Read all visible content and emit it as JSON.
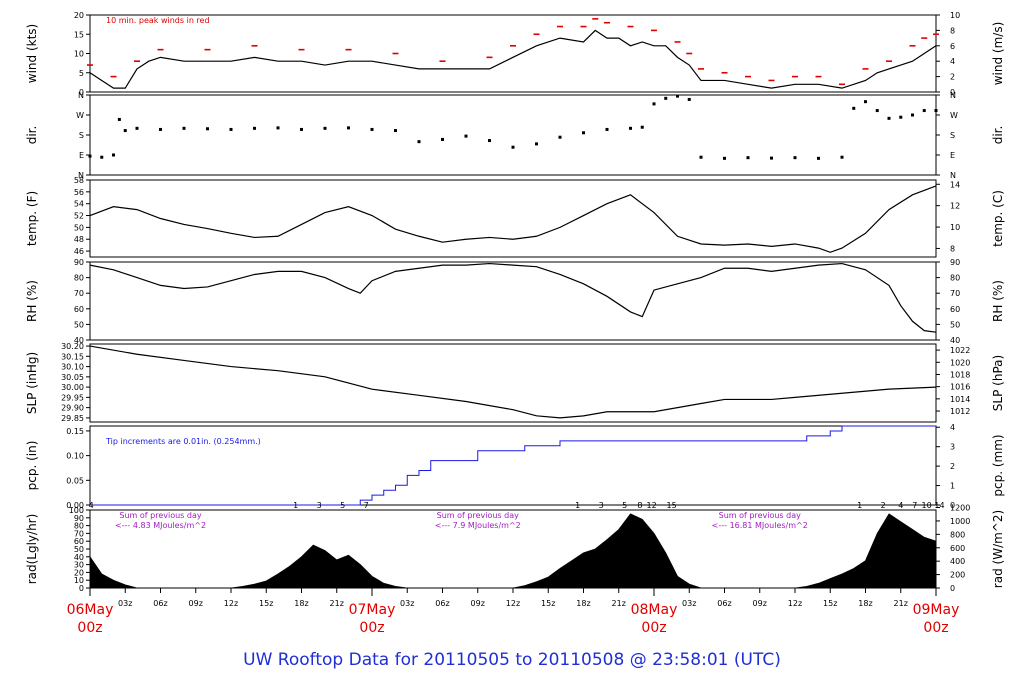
{
  "footer": {
    "title": "UW Rooftop Data for 20110505  to  20110508 @ 23:58:01  (UTC)"
  },
  "time_axis": {
    "day_labels": [
      {
        "day": "06May",
        "hour": "00z",
        "h": 0
      },
      {
        "day": "07May",
        "hour": "00z",
        "h": 24
      },
      {
        "day": "08May",
        "hour": "00z",
        "h": 48
      },
      {
        "day": "09May",
        "hour": "00z",
        "h": 72
      }
    ],
    "hour_ticks": [
      {
        "h": 3,
        "label": "03z"
      },
      {
        "h": 6,
        "label": "06z"
      },
      {
        "h": 9,
        "label": "09z"
      },
      {
        "h": 12,
        "label": "12z"
      },
      {
        "h": 15,
        "label": "15z"
      },
      {
        "h": 18,
        "label": "18z"
      },
      {
        "h": 21,
        "label": "21z"
      },
      {
        "h": 27,
        "label": "03z"
      },
      {
        "h": 30,
        "label": "06z"
      },
      {
        "h": 33,
        "label": "09z"
      },
      {
        "h": 36,
        "label": "12z"
      },
      {
        "h": 39,
        "label": "15z"
      },
      {
        "h": 42,
        "label": "18z"
      },
      {
        "h": 45,
        "label": "21z"
      },
      {
        "h": 51,
        "label": "03z"
      },
      {
        "h": 54,
        "label": "06z"
      },
      {
        "h": 57,
        "label": "09z"
      },
      {
        "h": 60,
        "label": "12z"
      },
      {
        "h": 63,
        "label": "15z"
      },
      {
        "h": 66,
        "label": "18z"
      },
      {
        "h": 69,
        "label": "21z"
      }
    ],
    "colors": {
      "day": "#e00000",
      "tick": "#000000"
    }
  },
  "chart_data": [
    {
      "id": "wind",
      "type": "line",
      "ylabel_left": "wind (kts)",
      "ylabel_right": "wind (m/s)",
      "ylim": [
        0,
        20
      ],
      "yticks_left": [
        0,
        5,
        10,
        15,
        20
      ],
      "ylim_right": [
        0,
        10
      ],
      "yticks_right": [
        0,
        2,
        4,
        6,
        8,
        10
      ],
      "annotation": "10 min. peak winds in red",
      "series": [
        {
          "color": "#000000",
          "x": [
            0,
            1,
            2,
            3,
            4,
            5,
            6,
            8,
            10,
            12,
            14,
            16,
            18,
            20,
            22,
            24,
            26,
            28,
            30,
            32,
            34,
            36,
            38,
            40,
            42,
            43,
            44,
            45,
            46,
            47,
            48,
            49,
            50,
            51,
            52,
            53,
            54,
            56,
            58,
            60,
            62,
            64,
            66,
            67,
            68,
            69,
            70,
            71,
            72
          ],
          "y": [
            5,
            3,
            1,
            1,
            6,
            8,
            9,
            8,
            8,
            8,
            9,
            8,
            8,
            7,
            8,
            8,
            7,
            6,
            6,
            6,
            6,
            9,
            12,
            14,
            13,
            16,
            14,
            14,
            12,
            13,
            12,
            12,
            9,
            7,
            3,
            3,
            3,
            2,
            1,
            2,
            2,
            1,
            3,
            5,
            6,
            7,
            8,
            10,
            12
          ]
        },
        {
          "color": "#e00000",
          "x": [
            0,
            2,
            4,
            6,
            10,
            14,
            18,
            22,
            26,
            30,
            34,
            36,
            38,
            40,
            42,
            43,
            44,
            46,
            48,
            50,
            51,
            52,
            54,
            56,
            58,
            60,
            62,
            64,
            66,
            68,
            70,
            71,
            72
          ],
          "y": [
            7,
            4,
            8,
            11,
            11,
            12,
            11,
            11,
            10,
            8,
            9,
            12,
            15,
            17,
            17,
            19,
            18,
            17,
            16,
            13,
            10,
            6,
            5,
            4,
            3,
            4,
            4,
            2,
            6,
            8,
            12,
            14,
            15
          ]
        }
      ]
    },
    {
      "id": "dir",
      "type": "scatter",
      "ylabel_left": "dir.",
      "ylabel_right": "dir.",
      "ylim": [
        0,
        360
      ],
      "ytick_labels": [
        "N",
        "E",
        "S",
        "W",
        "N"
      ],
      "ytick_values": [
        0,
        90,
        180,
        270,
        360
      ],
      "series": [
        {
          "color": "#000000",
          "x": [
            0,
            1,
            2,
            2.5,
            3,
            4,
            6,
            8,
            10,
            12,
            14,
            16,
            18,
            20,
            22,
            24,
            26,
            28,
            30,
            32,
            34,
            36,
            38,
            40,
            42,
            44,
            46,
            47,
            48,
            49,
            50,
            51,
            52,
            54,
            56,
            58,
            60,
            62,
            64,
            65,
            66,
            67,
            68,
            69,
            70,
            71,
            72
          ],
          "y": [
            85,
            80,
            90,
            250,
            200,
            210,
            205,
            210,
            208,
            205,
            210,
            212,
            205,
            210,
            212,
            205,
            200,
            150,
            160,
            175,
            155,
            125,
            140,
            170,
            190,
            205,
            210,
            215,
            320,
            345,
            355,
            340,
            80,
            75,
            78,
            76,
            78,
            75,
            80,
            300,
            330,
            290,
            255,
            260,
            270,
            290,
            290
          ]
        }
      ]
    },
    {
      "id": "temp",
      "type": "line",
      "ylabel_left": "temp. (F)",
      "ylabel_right": "temp. (C)",
      "ylim": [
        45,
        58
      ],
      "yticks_left": [
        46,
        48,
        50,
        52,
        54,
        56,
        58
      ],
      "ylim_right": [
        7.2,
        14.4
      ],
      "yticks_right": [
        8,
        10,
        12,
        14
      ],
      "series": [
        {
          "color": "#000000",
          "x": [
            0,
            2,
            4,
            6,
            8,
            10,
            12,
            14,
            16,
            18,
            20,
            22,
            24,
            26,
            28,
            30,
            32,
            34,
            36,
            38,
            40,
            42,
            44,
            46,
            48,
            50,
            52,
            54,
            56,
            58,
            60,
            62,
            63,
            64,
            66,
            68,
            70,
            72
          ],
          "y": [
            52,
            53.5,
            53,
            51.5,
            50.5,
            49.8,
            49,
            48.3,
            48.5,
            50.5,
            52.5,
            53.5,
            52,
            49.7,
            48.5,
            47.5,
            48,
            48.3,
            48,
            48.5,
            50,
            52,
            54,
            55.5,
            52.5,
            48.5,
            47.2,
            47,
            47.2,
            46.8,
            47.2,
            46.5,
            45.8,
            46.5,
            49,
            53,
            55.5,
            57
          ]
        }
      ]
    },
    {
      "id": "rh",
      "type": "line",
      "ylabel_left": "RH (%)",
      "ylabel_right": "RH (%)",
      "ylim": [
        40,
        90
      ],
      "yticks_left": [
        40,
        50,
        60,
        70,
        80,
        90
      ],
      "series": [
        {
          "color": "#000000",
          "x": [
            0,
            2,
            4,
            6,
            8,
            10,
            12,
            14,
            16,
            18,
            20,
            22,
            23,
            24,
            26,
            28,
            30,
            32,
            34,
            36,
            38,
            40,
            42,
            44,
            46,
            47,
            48,
            50,
            52,
            54,
            56,
            58,
            60,
            62,
            64,
            66,
            68,
            69,
            70,
            71,
            72
          ],
          "y": [
            88,
            85,
            80,
            75,
            73,
            74,
            78,
            82,
            84,
            84,
            80,
            73,
            70,
            78,
            84,
            86,
            88,
            88,
            89,
            88,
            87,
            82,
            76,
            68,
            58,
            55,
            72,
            76,
            80,
            86,
            86,
            84,
            86,
            88,
            89,
            85,
            75,
            62,
            52,
            46,
            45
          ]
        }
      ]
    },
    {
      "id": "slp",
      "type": "line",
      "ylabel_left": "SLP (inHg)",
      "ylabel_right": "SLP (hPa)",
      "ylim": [
        29.83,
        30.21
      ],
      "yticks_left": [
        29.85,
        29.9,
        29.95,
        30.0,
        30.05,
        30.1,
        30.15,
        30.2
      ],
      "ylim_right": [
        1010.2,
        1023.0
      ],
      "yticks_right": [
        1012,
        1014,
        1016,
        1018,
        1020,
        1022
      ],
      "series": [
        {
          "color": "#000000",
          "x": [
            0,
            4,
            8,
            12,
            16,
            20,
            24,
            28,
            32,
            36,
            38,
            40,
            42,
            44,
            46,
            48,
            50,
            52,
            54,
            56,
            58,
            60,
            64,
            68,
            72
          ],
          "y": [
            30.2,
            30.16,
            30.13,
            30.1,
            30.08,
            30.05,
            29.99,
            29.96,
            29.93,
            29.89,
            29.86,
            29.85,
            29.86,
            29.88,
            29.88,
            29.88,
            29.9,
            29.92,
            29.94,
            29.94,
            29.94,
            29.95,
            29.97,
            29.99,
            30.0
          ]
        }
      ]
    },
    {
      "id": "pcp",
      "type": "line",
      "ylabel_left": "pcp. (in)",
      "ylabel_right": "pcp. (mm)",
      "ylim": [
        0,
        0.16
      ],
      "yticks_left": [
        0.0,
        0.05,
        0.1,
        0.15
      ],
      "ylim_right": [
        0,
        4.064
      ],
      "yticks_right": [
        0,
        1,
        2,
        3,
        4
      ],
      "annotation": "Tip increments are 0.01in. (0.254mm.)",
      "series": [
        {
          "color": "#1a1ae6",
          "x": [
            0,
            22,
            23,
            24,
            25,
            26,
            27,
            28,
            29,
            32,
            33,
            36,
            37,
            40,
            44,
            48,
            52,
            56,
            60,
            61,
            62,
            63,
            64,
            66,
            68,
            70,
            72
          ],
          "y": [
            0,
            0,
            0.01,
            0.02,
            0.03,
            0.04,
            0.06,
            0.07,
            0.09,
            0.09,
            0.11,
            0.11,
            0.12,
            0.13,
            0.13,
            0.13,
            0.13,
            0.13,
            0.13,
            0.14,
            0.14,
            0.15,
            0.16,
            0.16,
            0.16,
            0.16,
            0.16
          ]
        }
      ]
    },
    {
      "id": "rad",
      "type": "area",
      "ylabel_left": "rad(Lgly/hr)",
      "ylabel_right": "rad (W/m^2)",
      "ylim": [
        0,
        100
      ],
      "yticks_left": [
        0,
        10,
        20,
        30,
        40,
        50,
        60,
        70,
        80,
        90,
        100
      ],
      "ylim_right": [
        0,
        1163
      ],
      "yticks_right": [
        0,
        200,
        400,
        600,
        800,
        1000,
        1200
      ],
      "hour_numbers": [
        {
          "h": 0.1,
          "label": "4"
        },
        {
          "h": 17.5,
          "label": "1"
        },
        {
          "h": 19.5,
          "label": "3"
        },
        {
          "h": 21.5,
          "label": "5"
        },
        {
          "h": 23.5,
          "label": "7"
        },
        {
          "h": 41.5,
          "label": "1"
        },
        {
          "h": 43.5,
          "label": "3"
        },
        {
          "h": 45.5,
          "label": "5"
        },
        {
          "h": 46.8,
          "label": "8"
        },
        {
          "h": 47.8,
          "label": "12"
        },
        {
          "h": 49.5,
          "label": "15"
        },
        {
          "h": 65.5,
          "label": "1"
        },
        {
          "h": 67.5,
          "label": "2"
        },
        {
          "h": 69,
          "label": "4"
        },
        {
          "h": 70.2,
          "label": "7"
        },
        {
          "h": 71.2,
          "label": "10"
        },
        {
          "h": 72.3,
          "label": "14"
        }
      ],
      "daily_notes": [
        {
          "h": 6,
          "line1": "Sum of previous day",
          "line2": "<--- 4.83 MJoules/m^2"
        },
        {
          "h": 33,
          "line1": "Sum of previous day",
          "line2": "<--- 7.9 MJoules/m^2"
        },
        {
          "h": 57,
          "line1": "Sum of previous day",
          "line2": "<--- 16.81 MJoules/m^2"
        }
      ],
      "series": [
        {
          "color": "#000000",
          "x": [
            0,
            1,
            2,
            3,
            4,
            12,
            13,
            14,
            15,
            16,
            17,
            18,
            19,
            20,
            21,
            22,
            23,
            24,
            25,
            26,
            27,
            36,
            37,
            38,
            39,
            40,
            41,
            42,
            43,
            44,
            45,
            46,
            47,
            48,
            49,
            50,
            51,
            52,
            60,
            61,
            62,
            63,
            64,
            65,
            66,
            67,
            68,
            69,
            70,
            71,
            72
          ],
          "y": [
            40,
            18,
            10,
            4,
            0,
            0,
            2,
            5,
            9,
            18,
            28,
            40,
            55,
            48,
            36,
            42,
            30,
            15,
            6,
            2,
            0,
            0,
            3,
            8,
            14,
            25,
            35,
            45,
            50,
            62,
            75,
            95,
            88,
            70,
            45,
            15,
            5,
            0,
            0,
            2,
            6,
            12,
            18,
            25,
            35,
            70,
            95,
            85,
            75,
            65,
            60
          ]
        }
      ]
    }
  ]
}
